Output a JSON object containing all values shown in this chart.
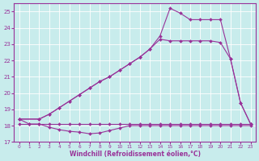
{
  "background_color": "#c8ecec",
  "line_color": "#993399",
  "grid_color": "#ffffff",
  "xlabel": "Windchill (Refroidissement éolien,°C)",
  "xlim": [
    -0.5,
    23.5
  ],
  "ylim": [
    17,
    25.5
  ],
  "yticks": [
    17,
    18,
    19,
    20,
    21,
    22,
    23,
    24,
    25
  ],
  "xticks": [
    0,
    1,
    2,
    3,
    4,
    5,
    6,
    7,
    8,
    9,
    10,
    11,
    12,
    13,
    14,
    15,
    16,
    17,
    18,
    19,
    20,
    21,
    22,
    23
  ],
  "line1_x": [
    0,
    1,
    2,
    3,
    4,
    5,
    6,
    7,
    8,
    9,
    10,
    11,
    12,
    13,
    14,
    15,
    16,
    17,
    18,
    19,
    20,
    21,
    22,
    23
  ],
  "line1_y": [
    18.1,
    18.1,
    18.1,
    18.1,
    18.1,
    18.1,
    18.1,
    18.1,
    18.1,
    18.1,
    18.1,
    18.1,
    18.1,
    18.1,
    18.1,
    18.1,
    18.1,
    18.1,
    18.1,
    18.1,
    18.1,
    18.1,
    18.1,
    18.1
  ],
  "line2_x": [
    0,
    1,
    2,
    3,
    4,
    5,
    6,
    7,
    8,
    9,
    10,
    11,
    12,
    13,
    14,
    15,
    16,
    17,
    18,
    19,
    20,
    21,
    22,
    23
  ],
  "line2_y": [
    18.4,
    18.1,
    18.1,
    17.9,
    17.75,
    17.65,
    17.6,
    17.5,
    17.55,
    17.7,
    17.85,
    18.0,
    18.0,
    18.0,
    18.0,
    18.0,
    18.0,
    18.0,
    18.0,
    18.0,
    18.0,
    18.0,
    18.0,
    18.0
  ],
  "line3_x": [
    0,
    2,
    3,
    4,
    5,
    6,
    7,
    8,
    9,
    10,
    11,
    12,
    13,
    14,
    15,
    16,
    17,
    18,
    19,
    20,
    21,
    22,
    23
  ],
  "line3_y": [
    18.4,
    18.4,
    18.7,
    19.1,
    19.5,
    19.9,
    20.3,
    20.7,
    21.0,
    21.4,
    21.8,
    22.2,
    22.7,
    23.3,
    23.2,
    23.2,
    23.2,
    23.2,
    23.2,
    23.1,
    22.1,
    19.4,
    18.1
  ],
  "line4_x": [
    0,
    2,
    3,
    4,
    5,
    6,
    7,
    8,
    9,
    10,
    11,
    12,
    13,
    14,
    15,
    16,
    17,
    18,
    19,
    20,
    21,
    22,
    23
  ],
  "line4_y": [
    18.4,
    18.4,
    18.7,
    19.1,
    19.5,
    19.9,
    20.3,
    20.7,
    21.0,
    21.4,
    21.8,
    22.2,
    22.7,
    23.5,
    25.2,
    24.9,
    24.5,
    24.5,
    24.5,
    24.5,
    22.1,
    19.4,
    18.1
  ]
}
